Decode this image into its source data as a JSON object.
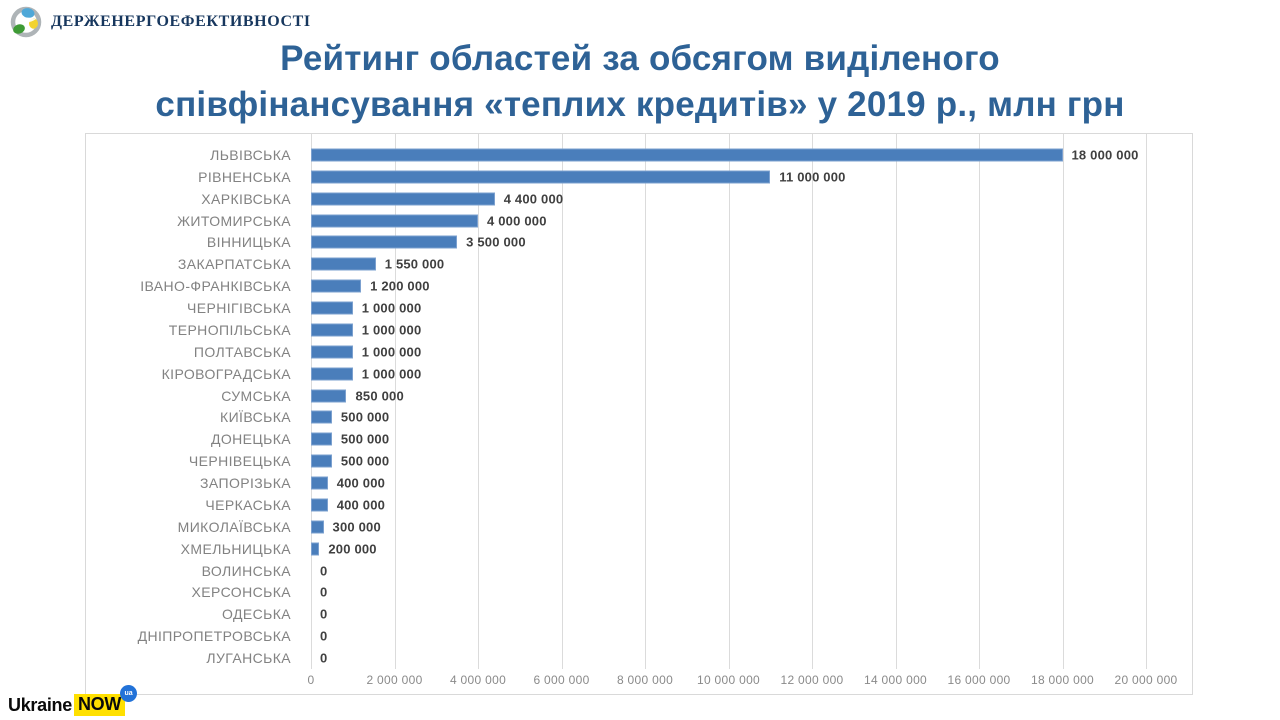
{
  "branding": {
    "agency_name": "ДЕРЖЕНЕРГОЕФЕКТИВНОСТІ",
    "footer": {
      "word1": "Ukraine",
      "word2": "NOW",
      "badge": "ua"
    }
  },
  "title": {
    "line1": "Рейтинг областей за обсягом виділеного",
    "line2": "співфінансування «теплих кредитів» у 2019 р., млн грн"
  },
  "chart_data": {
    "type": "bar",
    "orientation": "horizontal",
    "title": "Рейтинг областей за обсягом виділеного співфінансування «теплих кредитів» у 2019 р., млн грн",
    "categories": [
      "ЛЬВІВСЬКА",
      "РІВНЕНСЬКА",
      "ХАРКІВСЬКА",
      "ЖИТОМИРСЬКА",
      "ВІННИЦЬКА",
      "ЗАКАРПАТСЬКА",
      "ІВАНО-ФРАНКІВСЬКА",
      "ЧЕРНІГІВСЬКА",
      "ТЕРНОПІЛЬСЬКА",
      "ПОЛТАВСЬКА",
      "КІРОВОГРАДСЬКА",
      "СУМСЬКА",
      "КИЇВСЬКА",
      "ДОНЕЦЬКА",
      "ЧЕРНІВЕЦЬКА",
      "ЗАПОРІЗЬКА",
      "ЧЕРКАСЬКА",
      "МИКОЛАЇВСЬКА",
      "ХМЕЛЬНИЦЬКА",
      "ВОЛИНСЬКА",
      "ХЕРСОНСЬКА",
      "ОДЕСЬКА",
      "ДНІПРОПЕТРОВСЬКА",
      "ЛУГАНСЬКА"
    ],
    "values": [
      18000000,
      11000000,
      4400000,
      4000000,
      3500000,
      1550000,
      1200000,
      1000000,
      1000000,
      1000000,
      1000000,
      850000,
      500000,
      500000,
      500000,
      400000,
      400000,
      300000,
      200000,
      0,
      0,
      0,
      0,
      0
    ],
    "value_labels": [
      "18 000 000",
      "11 000 000",
      "4 400 000",
      "4 000 000",
      "3 500 000",
      "1 550 000",
      "1 200 000",
      "1 000 000",
      "1 000 000",
      "1 000 000",
      "1 000 000",
      "850 000",
      "500 000",
      "500 000",
      "500 000",
      "400 000",
      "400 000",
      "300 000",
      "200 000",
      "0",
      "0",
      "0",
      "0",
      "0"
    ],
    "x_ticks": [
      0,
      2000000,
      4000000,
      6000000,
      8000000,
      10000000,
      12000000,
      14000000,
      16000000,
      18000000,
      20000000
    ],
    "x_tick_labels": [
      "0",
      "2 000 000",
      "4 000 000",
      "6 000 000",
      "8 000 000",
      "10 000 000",
      "12 000 000",
      "14 000 000",
      "16 000 000",
      "18 000 000",
      "20 000 000"
    ],
    "xlim": [
      0,
      20000000
    ],
    "grid": true,
    "legend": false,
    "bar_color": "#4A7EBB",
    "bar_border_color": "#7BA0CF",
    "gridline_color": "#DBDBDB",
    "category_label_color": "#828282",
    "value_label_color": "#404040",
    "title_color": "#2E6296"
  }
}
